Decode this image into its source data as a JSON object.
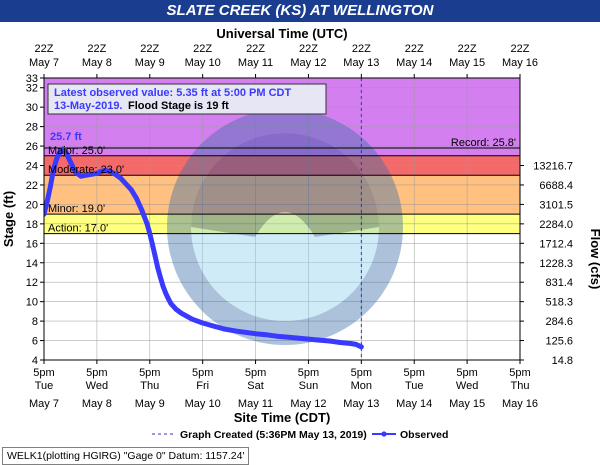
{
  "title": "SLATE CREEK (KS) AT WELLINGTON",
  "footer_label": "WELK1(plotting HGIRG) \"Gage 0\" Datum: 1157.24'",
  "chart_data": {
    "type": "line",
    "top_axis_label": "Universal Time (UTC)",
    "xlabel": "Site Time (CDT)",
    "ylabel": "Stage (ft)",
    "y2label": "Flow (cfs)",
    "ylim": [
      4,
      33
    ],
    "y_ticks": [
      4,
      6,
      8,
      10,
      12,
      14,
      16,
      18,
      20,
      22,
      24,
      26,
      28,
      30,
      32,
      33
    ],
    "x_days": [
      "May 7",
      "May 8",
      "May 9",
      "May 10",
      "May 11",
      "May 12",
      "May 13",
      "May 14",
      "May 15",
      "May 16"
    ],
    "x_bottom_time": "5pm",
    "x_bottom_weekdays": [
      "Tue",
      "Wed",
      "Thu",
      "Fri",
      "Sat",
      "Sun",
      "Mon",
      "Tue",
      "Wed",
      "Thu"
    ],
    "x_top_time": "22Z",
    "flow_ticks": [
      {
        "stage": 24,
        "label": "13216.7"
      },
      {
        "stage": 22,
        "label": "6688.4"
      },
      {
        "stage": 20,
        "label": "3101.5"
      },
      {
        "stage": 18,
        "label": "2284.0"
      },
      {
        "stage": 16,
        "label": "1712.4"
      },
      {
        "stage": 14,
        "label": "1228.3"
      },
      {
        "stage": 12,
        "label": "831.4"
      },
      {
        "stage": 10,
        "label": "518.3"
      },
      {
        "stage": 8,
        "label": "284.6"
      },
      {
        "stage": 6,
        "label": "125.6"
      },
      {
        "stage": 4,
        "label": "14.8"
      }
    ],
    "stage_bands": [
      {
        "name": "Major",
        "from": 25,
        "to": 33,
        "color": "#d47ff0"
      },
      {
        "name": "Moderate",
        "from": 23,
        "to": 25,
        "color": "#f26a6a"
      },
      {
        "name": "Minor",
        "from": 19,
        "to": 23,
        "color": "#ffc080"
      },
      {
        "name": "Action",
        "from": 17,
        "to": 19,
        "color": "#ffff80"
      }
    ],
    "thresholds": [
      {
        "label": "Major: 25.0'",
        "value": 25
      },
      {
        "label": "Moderate: 23.0'",
        "value": 23
      },
      {
        "label": "Minor: 19.0'",
        "value": 19
      },
      {
        "label": "Action: 17.0'",
        "value": 17
      }
    ],
    "record": {
      "label": "Record: 25.8'",
      "value": 25.8
    },
    "peak_label": "25.7 ft",
    "peak_value": 25.7,
    "latest_box": {
      "line1": "Latest observed value: 5.35 ft at 5:00 PM CDT",
      "line2_date": "13-May-2019.",
      "line2_rest": "Flood Stage is 19 ft"
    },
    "created_day": 6.0,
    "legend": {
      "created": "Graph Created (5:36PM May 13, 2019)",
      "observed": "Observed"
    },
    "series": [
      {
        "name": "Observed",
        "color": "#3a3aff",
        "x": [
          0.0,
          0.06,
          0.12,
          0.18,
          0.24,
          0.3,
          0.36,
          0.42,
          0.48,
          0.54,
          0.6,
          0.7,
          0.8,
          0.9,
          1.0,
          1.08,
          1.15,
          1.25,
          1.35,
          1.45,
          1.55,
          1.65,
          1.75,
          1.85,
          1.95,
          2.0,
          2.05,
          2.1,
          2.15,
          2.2,
          2.25,
          2.3,
          2.35,
          2.4,
          2.5,
          2.6,
          2.7,
          2.8,
          3.0,
          3.2,
          3.4,
          3.6,
          3.8,
          4.0,
          4.2,
          4.4,
          4.6,
          4.8,
          5.0,
          5.2,
          5.4,
          5.6,
          5.8,
          5.9,
          6.0
        ],
        "y": [
          19.0,
          20.3,
          21.8,
          23.6,
          24.7,
          25.4,
          25.7,
          25.3,
          24.6,
          23.9,
          23.3,
          22.9,
          23.0,
          23.1,
          23.2,
          23.4,
          23.5,
          23.4,
          23.1,
          22.7,
          22.1,
          21.5,
          20.6,
          19.4,
          18.0,
          17.0,
          15.9,
          14.7,
          13.5,
          12.5,
          11.6,
          10.9,
          10.3,
          9.8,
          9.2,
          8.8,
          8.5,
          8.2,
          7.8,
          7.5,
          7.2,
          7.0,
          6.85,
          6.7,
          6.6,
          6.45,
          6.35,
          6.25,
          6.15,
          6.05,
          5.95,
          5.8,
          5.7,
          5.6,
          5.35
        ]
      }
    ]
  }
}
